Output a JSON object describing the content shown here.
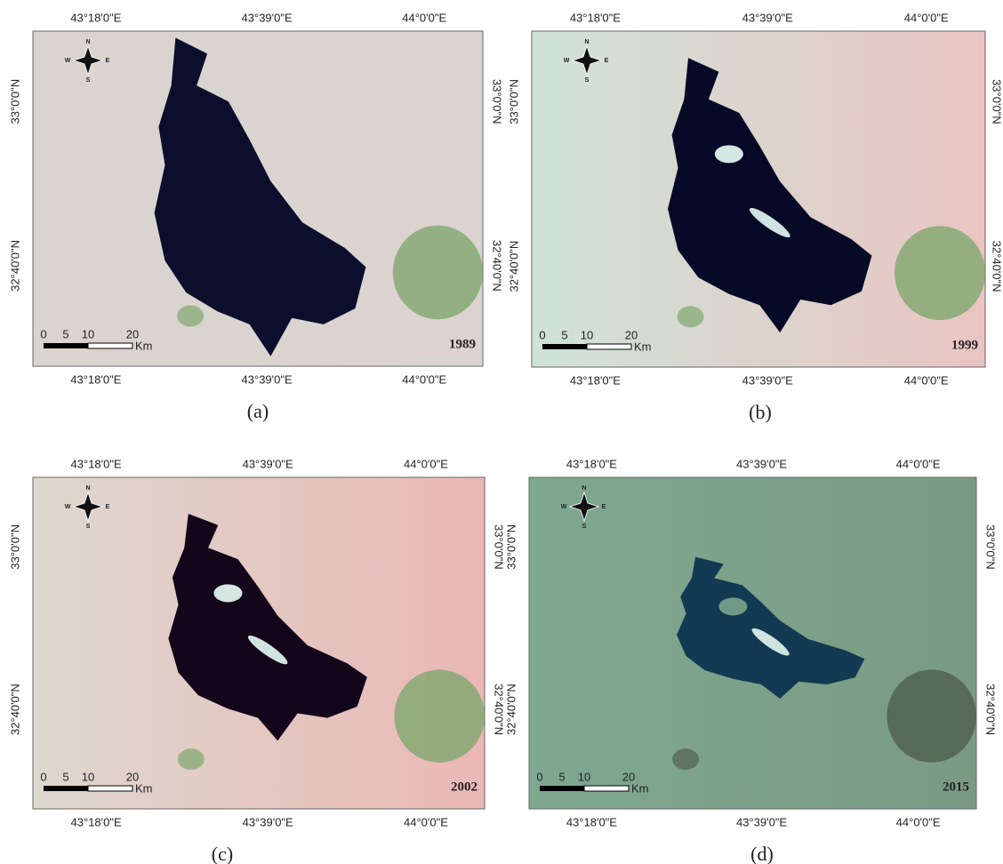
{
  "panels": [
    {
      "caption": "(a)",
      "year": "1989",
      "top_ticks": [
        "43°18'0\"E",
        "43°39'0\"E",
        "44°0'0\"E"
      ],
      "bottom_ticks": [
        "43°18'0\"E",
        "43°39'0\"E",
        "44°0'0\"E"
      ],
      "left_ticks": [
        "33°0'0\"N",
        "32°40'0\"N"
      ],
      "right_ticks": [
        "33°0'0\"N",
        "32°40'0\"N"
      ],
      "scale": {
        "labels": [
          "0",
          "5",
          "10",
          "20"
        ],
        "unit": "Km"
      },
      "compass": {
        "n": "N",
        "s": "S",
        "e": "E",
        "w": "W"
      }
    },
    {
      "caption": "(b)",
      "year": "1999",
      "top_ticks": [
        "43°18'0\"E",
        "43°39'0\"E",
        "44°0'0\"E"
      ],
      "bottom_ticks": [
        "43°18'0\"E",
        "43°39'0\"E",
        "44°0'0\"E"
      ],
      "left_ticks": [
        "33°0'0\"N",
        "32°40'0\"N"
      ],
      "right_ticks": [
        "33°0'0\"N",
        "32°40'0\"N"
      ],
      "scale": {
        "labels": [
          "0",
          "5",
          "10",
          "20"
        ],
        "unit": "Km"
      },
      "compass": {
        "n": "N",
        "s": "S",
        "e": "E",
        "w": "W"
      }
    },
    {
      "caption": "(c)",
      "year": "2002",
      "top_ticks": [
        "43°18'0\"E",
        "43°39'0\"E",
        "44°0'0\"E"
      ],
      "bottom_ticks": [
        "43°18'0\"E",
        "43°39'0\"E",
        "44°0'0\"E"
      ],
      "left_ticks": [
        "33°0'0\"N",
        "32°40'0\"N"
      ],
      "right_ticks": [
        "33°0'0\"N",
        "32°40'0\"N"
      ],
      "scale": {
        "labels": [
          "0",
          "5",
          "10",
          "20"
        ],
        "unit": "Km"
      },
      "compass": {
        "n": "N",
        "s": "S",
        "e": "E",
        "w": "W"
      }
    },
    {
      "caption": "(d)",
      "year": "2015",
      "top_ticks": [
        "43°18'0\"E",
        "43°39'0\"E",
        "44°0'0\"E"
      ],
      "bottom_ticks": [
        "43°18'0\"E",
        "43°39'0\"E",
        "44°0'0\"E"
      ],
      "left_ticks": [
        "33°0'0\"N",
        "32°40'0\"N"
      ],
      "right_ticks": [
        "33°0'0\"N",
        "32°40'0\"N"
      ],
      "scale": {
        "labels": [
          "0",
          "5",
          "10",
          "20"
        ],
        "unit": "Km"
      },
      "compass": {
        "n": "N",
        "s": "S",
        "e": "E",
        "w": "W"
      }
    }
  ]
}
